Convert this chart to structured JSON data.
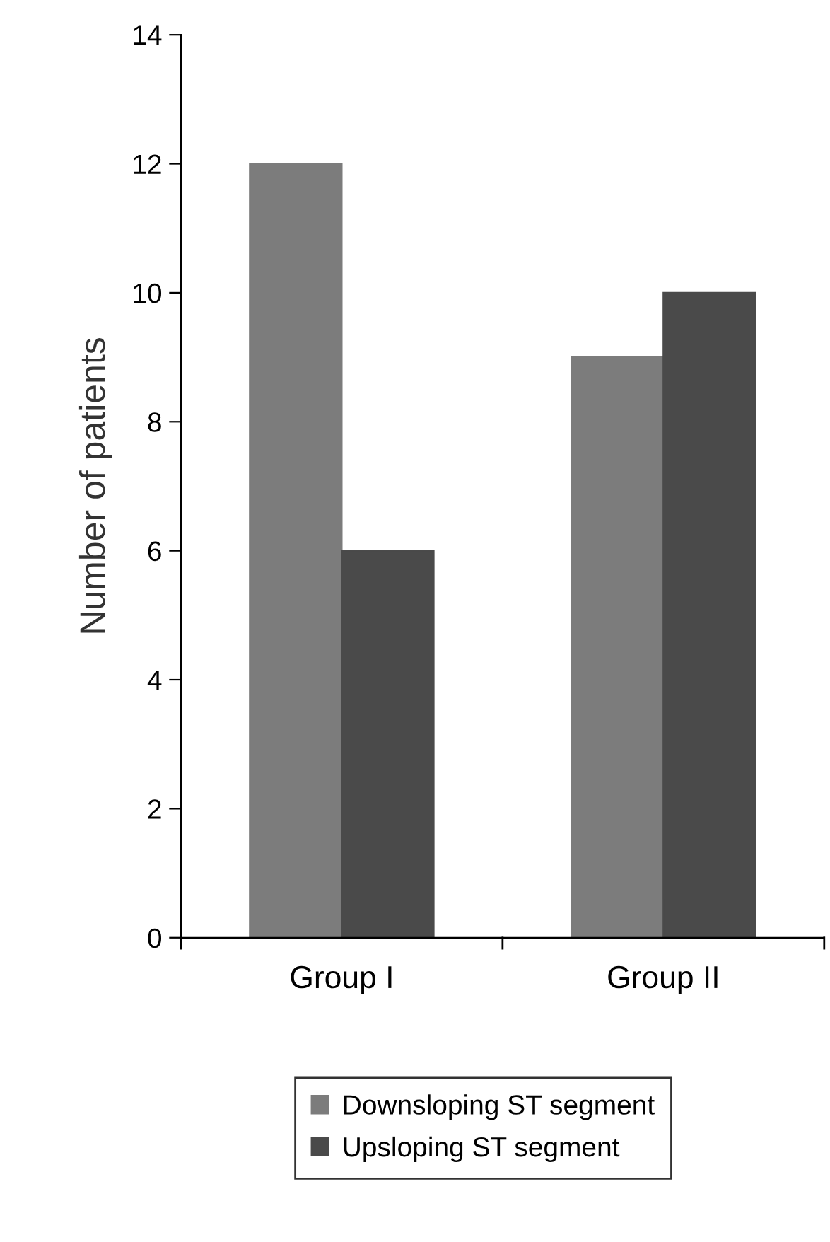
{
  "chart_data": {
    "type": "bar",
    "ylabel": "Number of patients",
    "categories": [
      "Group I",
      "Group II"
    ],
    "series": [
      {
        "name": "Downsloping ST segment",
        "color": "#7c7c7c",
        "values": [
          12,
          9
        ]
      },
      {
        "name": "Upsloping ST segment",
        "color": "#4a4a4a",
        "values": [
          6,
          10
        ]
      }
    ],
    "ylim": [
      0,
      14
    ],
    "yticks": [
      0,
      2,
      4,
      6,
      8,
      10,
      12,
      14
    ],
    "grid": false,
    "legend": "bottom"
  }
}
